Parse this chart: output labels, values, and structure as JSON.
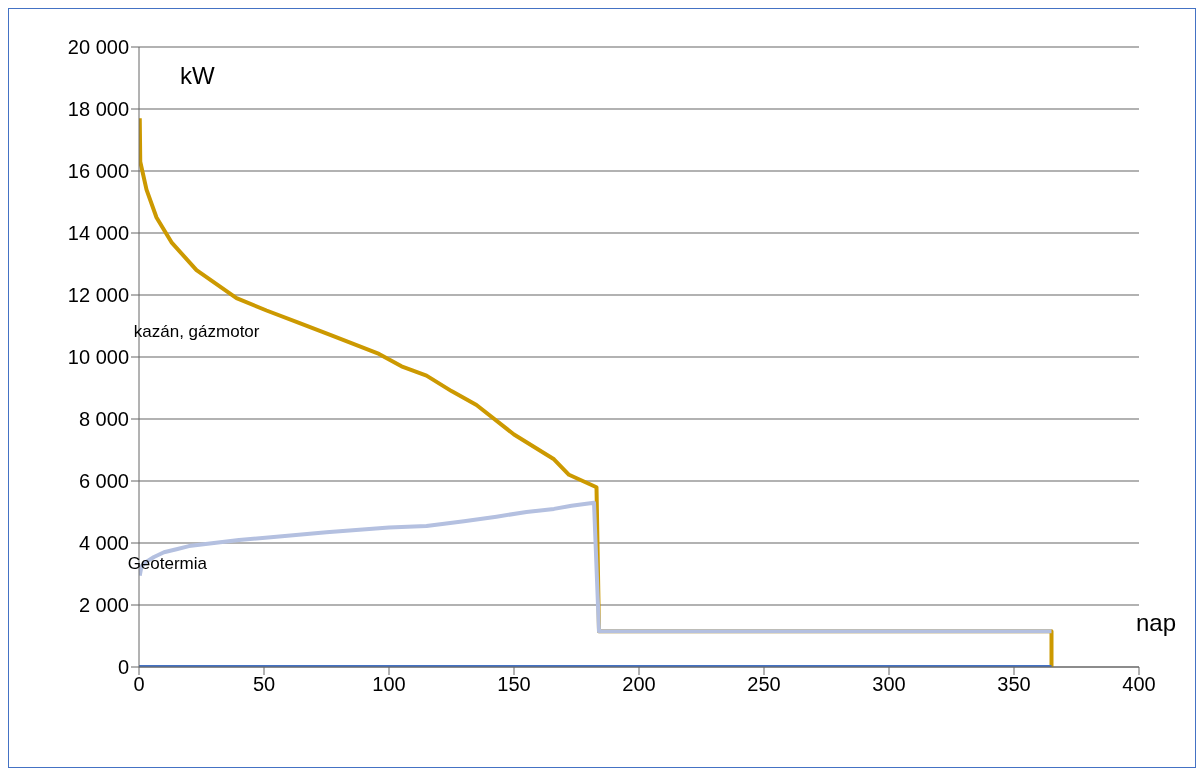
{
  "chart_data": {
    "type": "line",
    "xlabel": "nap",
    "ylabel": "kW",
    "xlim": [
      0,
      400
    ],
    "xticks": [
      0,
      50,
      100,
      150,
      200,
      250,
      300,
      350,
      400
    ],
    "ylim": [
      0,
      20000
    ],
    "yticks": [
      {
        "value": 0,
        "label": "0"
      },
      {
        "value": 2000,
        "label": "2 000"
      },
      {
        "value": 4000,
        "label": "4 000"
      },
      {
        "value": 6000,
        "label": "6 000"
      },
      {
        "value": 8000,
        "label": "8 000"
      },
      {
        "value": 10000,
        "label": "10 000"
      },
      {
        "value": 12000,
        "label": "12 000"
      },
      {
        "value": 14000,
        "label": "14 000"
      },
      {
        "value": 16000,
        "label": "16 000"
      },
      {
        "value": 18000,
        "label": "18 000"
      },
      {
        "value": 20000,
        "label": "20 000"
      }
    ],
    "grid": "y",
    "marker": "none",
    "line_style": "solid",
    "series": [
      {
        "name": "kazán, gázmotor",
        "color": "#cc9900",
        "x": [
          0.3,
          0.5,
          3,
          7,
          13,
          23,
          39,
          51,
          64,
          77,
          96,
          105,
          115,
          125,
          135,
          150,
          166,
          172,
          183,
          184,
          365,
          365
        ],
        "values": [
          17700,
          16300,
          15400,
          14500,
          13700,
          12800,
          11900,
          11500,
          11100,
          10700,
          10100,
          9700,
          9400,
          8900,
          8450,
          7500,
          6700,
          6200,
          5800,
          1150,
          1150,
          0
        ]
      },
      {
        "name": "Geotermia",
        "color": "#b4c0e0",
        "x": [
          0.3,
          1,
          3,
          6,
          10,
          15,
          20,
          30,
          40,
          55,
          75,
          100,
          115,
          130,
          143,
          155,
          166,
          173,
          182,
          184,
          365
        ],
        "values": [
          2950,
          3250,
          3400,
          3550,
          3700,
          3800,
          3900,
          4000,
          4100,
          4200,
          4350,
          4500,
          4550,
          4700,
          4850,
          5000,
          5100,
          5200,
          5300,
          1150,
          1150
        ]
      },
      {
        "color": "#4472c4",
        "x": [
          0,
          365
        ],
        "values": [
          0,
          0
        ]
      }
    ]
  }
}
